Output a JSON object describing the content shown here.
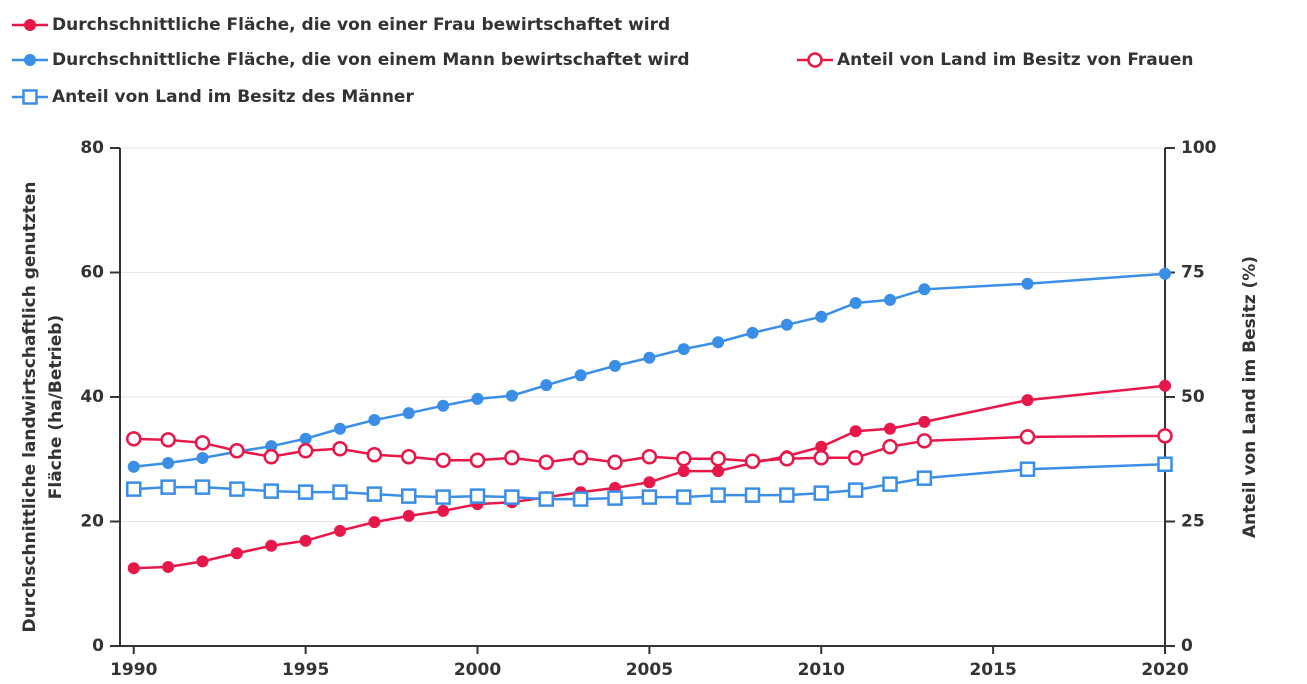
{
  "chart_data": {
    "type": "line",
    "x": [
      1990,
      1991,
      1992,
      1993,
      1994,
      1995,
      1996,
      1997,
      1998,
      1999,
      2000,
      2001,
      2002,
      2003,
      2004,
      2005,
      2006,
      2007,
      2008,
      2009,
      2010,
      2011,
      2012,
      2013,
      2016,
      2020
    ],
    "series": [
      {
        "name": "Durchschnittliche Fläche, die von einer Frau bewirtschaftet wird",
        "color": "#e8174a",
        "marker": "circle",
        "axis": "y",
        "values": [
          12.5,
          12.7,
          13.6,
          14.9,
          16.1,
          16.9,
          18.5,
          19.9,
          20.9,
          21.7,
          22.8,
          23.1,
          23.9,
          24.7,
          25.4,
          26.3,
          28.1,
          28.1,
          29.4,
          30.5,
          32.0,
          34.5,
          34.9,
          36.0,
          39.5,
          41.8
        ]
      },
      {
        "name": "Durchschnittliche Fläche, die von einem Mann bewirtschaftet wird",
        "color": "#3a8ee6",
        "marker": "circle",
        "axis": "y",
        "values": [
          28.8,
          29.4,
          30.2,
          31.2,
          32.1,
          33.3,
          34.9,
          36.3,
          37.4,
          38.6,
          39.7,
          40.2,
          41.9,
          43.5,
          45.0,
          46.3,
          47.7,
          48.8,
          50.3,
          51.6,
          52.9,
          55.1,
          55.6,
          57.3,
          58.2,
          59.8
        ]
      },
      {
        "name": "Anteil von Land im Besitz von Frauen",
        "color": "#e8174a",
        "marker": "open-circle",
        "axis": "y2",
        "values": [
          41.6,
          41.4,
          40.8,
          39.2,
          38.0,
          39.2,
          39.6,
          38.4,
          38.0,
          37.3,
          37.3,
          37.8,
          36.9,
          37.8,
          36.9,
          38.0,
          37.6,
          37.6,
          37.1,
          37.6,
          37.8,
          37.8,
          40.0,
          41.2,
          42.0,
          42.2
        ]
      },
      {
        "name": "Anteil von Land im Besitz des Männer",
        "color": "#3a8ee6",
        "marker": "open-square",
        "axis": "y2",
        "values": [
          31.5,
          31.9,
          31.9,
          31.5,
          31.1,
          30.9,
          30.9,
          30.5,
          30.1,
          29.9,
          30.1,
          29.9,
          29.5,
          29.5,
          29.7,
          29.9,
          29.9,
          30.3,
          30.3,
          30.3,
          30.7,
          31.3,
          32.5,
          33.7,
          35.5,
          36.5
        ]
      }
    ],
    "ylabel": [
      "Durchschnittliche landwirtschaftlich genutzten",
      "Fläche (ha/Betrieb)"
    ],
    "y2label": "Anteil von Land im Besitz (%)",
    "xlim": [
      1989.6,
      2020
    ],
    "xticks": [
      1990,
      1995,
      2000,
      2005,
      2010,
      2015,
      2020
    ],
    "ylim": [
      0,
      80
    ],
    "yticks": [
      0,
      20,
      40,
      60,
      80
    ],
    "y2lim": [
      0,
      100
    ],
    "y2ticks": [
      0,
      25,
      50,
      75,
      100
    ],
    "grid": true,
    "legend": "top-left"
  }
}
